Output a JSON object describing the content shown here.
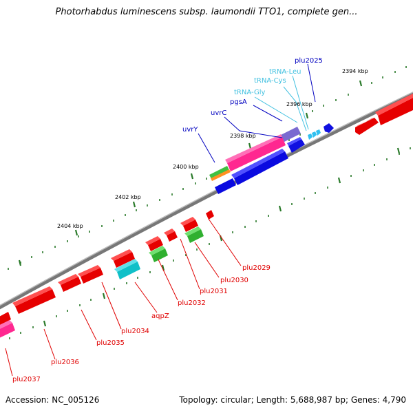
{
  "title": "Photorhabdus luminescens subsp. laumondii TTO1, complete gen...",
  "footer": {
    "accession": "Accession: NC_005126",
    "summary": "Topology: circular; Length: 5,688,987 bp; Genes: 4,790"
  },
  "ticks": [
    "2394 kbp",
    "2396 kbp",
    "2398 kbp",
    "2400 kbp",
    "2402 kbp",
    "2404 kbp"
  ],
  "labels_top": [
    {
      "text": "plu2025",
      "color": "#0000c0"
    },
    {
      "text": "tRNA-Leu",
      "color": "#40c0e0"
    },
    {
      "text": "tRNA-Cys",
      "color": "#40c0e0"
    },
    {
      "text": "tRNA-Gly",
      "color": "#40c0e0"
    },
    {
      "text": "pgsA",
      "color": "#0000c0"
    },
    {
      "text": "uvrC",
      "color": "#0000c0"
    },
    {
      "text": "uvrY",
      "color": "#0000c0"
    }
  ],
  "labels_bottom": [
    {
      "text": "plu2029",
      "color": "#e00000"
    },
    {
      "text": "plu2030",
      "color": "#e00000"
    },
    {
      "text": "plu2031",
      "color": "#e00000"
    },
    {
      "text": "plu2032",
      "color": "#e00000"
    },
    {
      "text": "aqpZ",
      "color": "#e00000"
    },
    {
      "text": "plu2034",
      "color": "#e00000"
    },
    {
      "text": "plu2035",
      "color": "#e00000"
    },
    {
      "text": "plu2036",
      "color": "#e00000"
    },
    {
      "text": "plu2037",
      "color": "#e00000"
    }
  ]
}
